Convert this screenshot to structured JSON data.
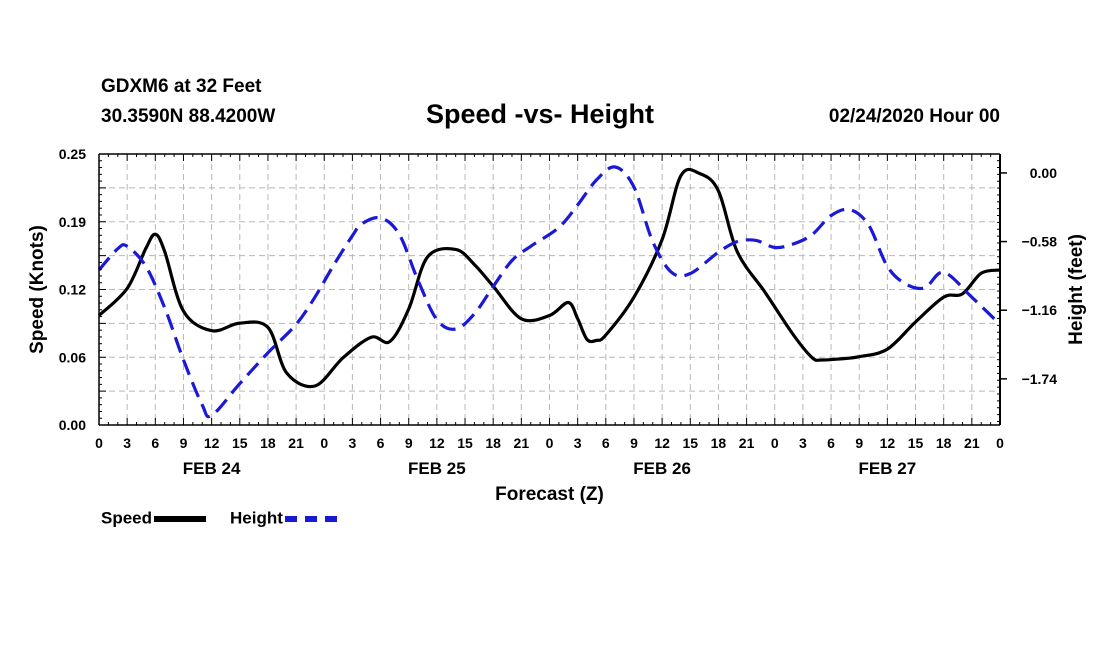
{
  "header": {
    "station": "GDXM6 at 32 Feet",
    "coords": "30.3590N 88.4200W",
    "title": "Speed -vs- Height",
    "datetime": "02/24/2020 Hour 00"
  },
  "legend": {
    "speed_label": "Speed",
    "height_label": "Height"
  },
  "colors": {
    "speed": "#000000",
    "height": "#1a1ad6",
    "grid": "#b8b8b8"
  },
  "chart_data": {
    "type": "line",
    "title": "Speed -vs- Height",
    "xlabel": "Forecast (Z)",
    "ylabel": "Speed (Knots)",
    "y2label": "Height (feet)",
    "x_range_hours": [
      0,
      96
    ],
    "ylim": [
      0.0,
      0.25
    ],
    "y2lim": [
      -2.13,
      0.16
    ],
    "yticks": [
      "0.00",
      "0.06",
      "0.12",
      "0.19",
      "0.25"
    ],
    "ytick_values": [
      0.0,
      0.0625,
      0.125,
      0.1875,
      0.25
    ],
    "y2ticks": [
      "0.00",
      "−0.58",
      "−1.16",
      "−1.74"
    ],
    "y2tick_values": [
      0.0,
      -0.58,
      -1.16,
      -1.74
    ],
    "xtick_labels": [
      "0",
      "3",
      "6",
      "9",
      "12",
      "15",
      "18",
      "21",
      "0",
      "3",
      "6",
      "9",
      "12",
      "15",
      "18",
      "21",
      "0",
      "3",
      "6",
      "9",
      "12",
      "15",
      "18",
      "21",
      "0",
      "3",
      "6",
      "9",
      "12",
      "15",
      "18",
      "21",
      "0"
    ],
    "day_labels": [
      {
        "label": "FEB 24",
        "hour": 12
      },
      {
        "label": "FEB 25",
        "hour": 36
      },
      {
        "label": "FEB 26",
        "hour": 60
      },
      {
        "label": "FEB 27",
        "hour": 84
      }
    ],
    "grid": true,
    "series": [
      {
        "name": "Speed",
        "axis": "left",
        "style": "solid",
        "x": [
          0,
          3,
          5,
          6,
          7,
          9,
          12,
          15,
          18,
          20,
          23,
          26,
          29,
          31,
          33,
          35,
          38,
          40,
          42,
          45,
          48,
          50,
          51,
          52,
          53,
          54,
          57,
          60,
          62,
          64,
          66,
          68,
          71,
          74,
          76,
          77,
          79,
          81,
          84,
          87,
          90,
          92,
          94,
          96
        ],
        "values": [
          0.101,
          0.126,
          0.163,
          0.176,
          0.16,
          0.105,
          0.087,
          0.094,
          0.09,
          0.048,
          0.036,
          0.062,
          0.081,
          0.077,
          0.107,
          0.155,
          0.162,
          0.148,
          0.128,
          0.098,
          0.101,
          0.113,
          0.098,
          0.079,
          0.078,
          0.083,
          0.118,
          0.171,
          0.23,
          0.232,
          0.216,
          0.16,
          0.122,
          0.083,
          0.062,
          0.06,
          0.061,
          0.063,
          0.07,
          0.095,
          0.118,
          0.121,
          0.14,
          0.143
        ]
      },
      {
        "name": "Height",
        "axis": "right",
        "style": "dashed",
        "x": [
          0,
          2,
          3,
          5,
          7,
          9,
          11,
          12,
          15,
          18,
          21,
          23,
          25,
          27,
          28,
          30,
          32,
          34,
          36,
          38,
          40,
          42,
          44,
          46,
          49,
          51,
          53,
          55,
          57,
          59,
          61,
          63,
          66,
          68,
          70,
          72,
          74,
          76,
          78,
          80,
          82,
          84,
          86,
          88,
          90,
          93,
          96
        ],
        "values": [
          -0.82,
          -0.64,
          -0.62,
          -0.79,
          -1.14,
          -1.58,
          -1.96,
          -2.05,
          -1.78,
          -1.52,
          -1.28,
          -1.05,
          -0.78,
          -0.53,
          -0.43,
          -0.38,
          -0.52,
          -0.91,
          -1.24,
          -1.32,
          -1.19,
          -0.96,
          -0.74,
          -0.62,
          -0.46,
          -0.27,
          -0.06,
          0.05,
          -0.12,
          -0.58,
          -0.84,
          -0.85,
          -0.67,
          -0.58,
          -0.57,
          -0.63,
          -0.6,
          -0.52,
          -0.36,
          -0.31,
          -0.44,
          -0.79,
          -0.94,
          -0.97,
          -0.84,
          -1.05,
          -1.28
        ]
      }
    ]
  }
}
